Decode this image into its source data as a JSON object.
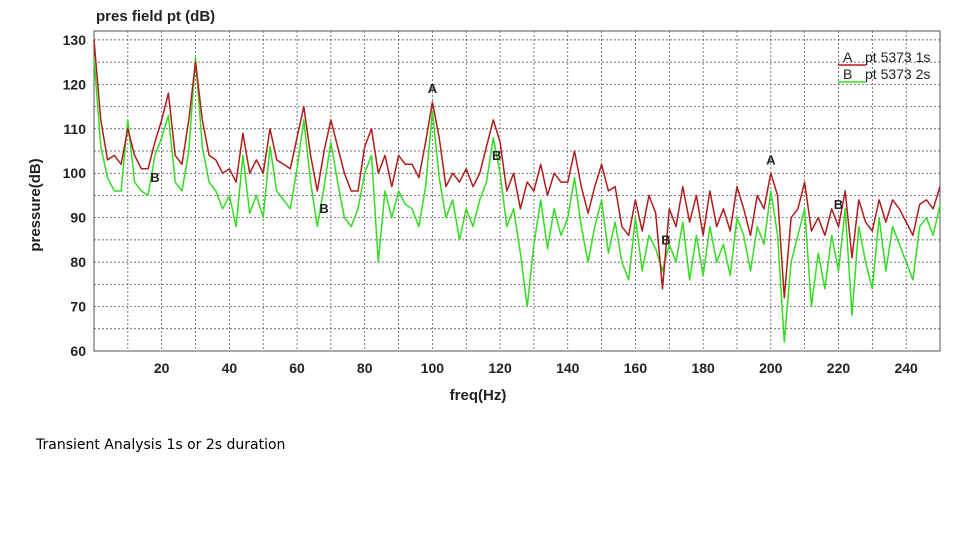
{
  "caption": "Transient Analysis 1s or 2s duration",
  "chart_data": {
    "type": "line",
    "title": "pres field pt (dB)",
    "xlabel": "freq(Hz)",
    "ylabel": "pressure(dB)",
    "xlim": [
      0,
      250
    ],
    "ylim": [
      60,
      132
    ],
    "x_ticks": [
      20,
      40,
      60,
      80,
      100,
      120,
      140,
      160,
      180,
      200,
      220,
      240
    ],
    "y_ticks": [
      60,
      70,
      80,
      90,
      100,
      110,
      120,
      130
    ],
    "grid": true,
    "legend_position": "top-right",
    "colors": {
      "A": "#b01c1c",
      "B": "#33dd22"
    },
    "series": [
      {
        "key": "A",
        "name": "pt 5373 1s",
        "points": [
          [
            0,
            130
          ],
          [
            2,
            112
          ],
          [
            4,
            103
          ],
          [
            6,
            104
          ],
          [
            8,
            102
          ],
          [
            10,
            110
          ],
          [
            12,
            104
          ],
          [
            14,
            101
          ],
          [
            16,
            101
          ],
          [
            18,
            107
          ],
          [
            20,
            112
          ],
          [
            22,
            118
          ],
          [
            24,
            104
          ],
          [
            26,
            102
          ],
          [
            28,
            112
          ],
          [
            30,
            125
          ],
          [
            32,
            112
          ],
          [
            34,
            104
          ],
          [
            36,
            103
          ],
          [
            38,
            100
          ],
          [
            40,
            101
          ],
          [
            42,
            98
          ],
          [
            44,
            109
          ],
          [
            46,
            100
          ],
          [
            48,
            103
          ],
          [
            50,
            100
          ],
          [
            52,
            110
          ],
          [
            54,
            103
          ],
          [
            56,
            102
          ],
          [
            58,
            101
          ],
          [
            60,
            108
          ],
          [
            62,
            115
          ],
          [
            64,
            104
          ],
          [
            66,
            96
          ],
          [
            68,
            105
          ],
          [
            70,
            112
          ],
          [
            72,
            106
          ],
          [
            74,
            100
          ],
          [
            76,
            96
          ],
          [
            78,
            96
          ],
          [
            80,
            106
          ],
          [
            82,
            110
          ],
          [
            84,
            100
          ],
          [
            86,
            104
          ],
          [
            88,
            97
          ],
          [
            90,
            104
          ],
          [
            92,
            102
          ],
          [
            94,
            102
          ],
          [
            96,
            99
          ],
          [
            98,
            107
          ],
          [
            100,
            116
          ],
          [
            102,
            108
          ],
          [
            104,
            97
          ],
          [
            106,
            100
          ],
          [
            108,
            98
          ],
          [
            110,
            101
          ],
          [
            112,
            97
          ],
          [
            114,
            100
          ],
          [
            116,
            106
          ],
          [
            118,
            112
          ],
          [
            120,
            107
          ],
          [
            122,
            96
          ],
          [
            124,
            100
          ],
          [
            126,
            92
          ],
          [
            128,
            98
          ],
          [
            130,
            96
          ],
          [
            132,
            102
          ],
          [
            134,
            95
          ],
          [
            136,
            100
          ],
          [
            138,
            98
          ],
          [
            140,
            98
          ],
          [
            142,
            105
          ],
          [
            144,
            97
          ],
          [
            146,
            91
          ],
          [
            148,
            97
          ],
          [
            150,
            102
          ],
          [
            152,
            96
          ],
          [
            154,
            97
          ],
          [
            156,
            88
          ],
          [
            158,
            86
          ],
          [
            160,
            94
          ],
          [
            162,
            87
          ],
          [
            164,
            95
          ],
          [
            166,
            91
          ],
          [
            168,
            74
          ],
          [
            170,
            92
          ],
          [
            172,
            88
          ],
          [
            174,
            97
          ],
          [
            176,
            89
          ],
          [
            178,
            95
          ],
          [
            180,
            86
          ],
          [
            182,
            96
          ],
          [
            184,
            88
          ],
          [
            186,
            92
          ],
          [
            188,
            87
          ],
          [
            190,
            97
          ],
          [
            192,
            92
          ],
          [
            194,
            86
          ],
          [
            196,
            95
          ],
          [
            198,
            92
          ],
          [
            200,
            100
          ],
          [
            202,
            95
          ],
          [
            204,
            72
          ],
          [
            206,
            90
          ],
          [
            208,
            92
          ],
          [
            210,
            98
          ],
          [
            212,
            87
          ],
          [
            214,
            90
          ],
          [
            216,
            86
          ],
          [
            218,
            92
          ],
          [
            220,
            88
          ],
          [
            222,
            96
          ],
          [
            224,
            81
          ],
          [
            226,
            94
          ],
          [
            228,
            89
          ],
          [
            230,
            87
          ],
          [
            232,
            94
          ],
          [
            234,
            89
          ],
          [
            236,
            94
          ],
          [
            238,
            92
          ],
          [
            240,
            89
          ],
          [
            242,
            86
          ],
          [
            244,
            93
          ],
          [
            246,
            94
          ],
          [
            248,
            92
          ],
          [
            250,
            97
          ]
        ]
      },
      {
        "key": "B",
        "name": "pt 5373 2s",
        "points": [
          [
            0,
            126
          ],
          [
            2,
            106
          ],
          [
            4,
            99
          ],
          [
            6,
            96
          ],
          [
            8,
            96
          ],
          [
            10,
            112
          ],
          [
            12,
            98
          ],
          [
            14,
            96
          ],
          [
            16,
            95
          ],
          [
            18,
            104
          ],
          [
            20,
            108
          ],
          [
            22,
            113
          ],
          [
            24,
            98
          ],
          [
            26,
            96
          ],
          [
            28,
            105
          ],
          [
            30,
            126
          ],
          [
            32,
            106
          ],
          [
            34,
            98
          ],
          [
            36,
            96
          ],
          [
            38,
            92
          ],
          [
            40,
            95
          ],
          [
            42,
            88
          ],
          [
            44,
            104
          ],
          [
            46,
            91
          ],
          [
            48,
            95
          ],
          [
            50,
            90
          ],
          [
            52,
            106
          ],
          [
            54,
            96
          ],
          [
            56,
            94
          ],
          [
            58,
            92
          ],
          [
            60,
            101
          ],
          [
            62,
            112
          ],
          [
            64,
            98
          ],
          [
            66,
            88
          ],
          [
            68,
            97
          ],
          [
            70,
            107
          ],
          [
            72,
            98
          ],
          [
            74,
            90
          ],
          [
            76,
            88
          ],
          [
            78,
            92
          ],
          [
            80,
            100
          ],
          [
            82,
            104
          ],
          [
            84,
            80
          ],
          [
            86,
            96
          ],
          [
            88,
            90
          ],
          [
            90,
            96
          ],
          [
            92,
            93
          ],
          [
            94,
            92
          ],
          [
            96,
            88
          ],
          [
            98,
            97
          ],
          [
            100,
            114
          ],
          [
            102,
            99
          ],
          [
            104,
            90
          ],
          [
            106,
            94
          ],
          [
            108,
            85
          ],
          [
            110,
            92
          ],
          [
            112,
            88
          ],
          [
            114,
            94
          ],
          [
            116,
            98
          ],
          [
            118,
            108
          ],
          [
            120,
            100
          ],
          [
            122,
            88
          ],
          [
            124,
            92
          ],
          [
            126,
            82
          ],
          [
            128,
            70
          ],
          [
            130,
            84
          ],
          [
            132,
            94
          ],
          [
            134,
            83
          ],
          [
            136,
            92
          ],
          [
            138,
            86
          ],
          [
            140,
            90
          ],
          [
            142,
            99
          ],
          [
            144,
            88
          ],
          [
            146,
            80
          ],
          [
            148,
            88
          ],
          [
            150,
            94
          ],
          [
            152,
            82
          ],
          [
            154,
            89
          ],
          [
            156,
            80
          ],
          [
            158,
            76
          ],
          [
            160,
            90
          ],
          [
            162,
            78
          ],
          [
            164,
            86
          ],
          [
            166,
            83
          ],
          [
            168,
            78
          ],
          [
            170,
            84
          ],
          [
            172,
            80
          ],
          [
            174,
            89
          ],
          [
            176,
            76
          ],
          [
            178,
            86
          ],
          [
            180,
            77
          ],
          [
            182,
            88
          ],
          [
            184,
            80
          ],
          [
            186,
            84
          ],
          [
            188,
            77
          ],
          [
            190,
            90
          ],
          [
            192,
            86
          ],
          [
            194,
            78
          ],
          [
            196,
            88
          ],
          [
            198,
            84
          ],
          [
            200,
            96
          ],
          [
            202,
            86
          ],
          [
            204,
            62
          ],
          [
            206,
            80
          ],
          [
            208,
            86
          ],
          [
            210,
            92
          ],
          [
            212,
            70
          ],
          [
            214,
            82
          ],
          [
            216,
            74
          ],
          [
            218,
            86
          ],
          [
            220,
            78
          ],
          [
            222,
            92
          ],
          [
            224,
            68
          ],
          [
            226,
            88
          ],
          [
            228,
            80
          ],
          [
            230,
            74
          ],
          [
            232,
            90
          ],
          [
            234,
            78
          ],
          [
            236,
            88
          ],
          [
            238,
            84
          ],
          [
            240,
            80
          ],
          [
            242,
            76
          ],
          [
            244,
            88
          ],
          [
            246,
            90
          ],
          [
            248,
            86
          ],
          [
            250,
            93
          ]
        ]
      }
    ],
    "annotations": [
      {
        "text": "A",
        "x": 100,
        "y": 118
      },
      {
        "text": "B",
        "x": 18,
        "y": 98
      },
      {
        "text": "B",
        "x": 68,
        "y": 91
      },
      {
        "text": "B",
        "x": 119,
        "y": 103
      },
      {
        "text": "A",
        "x": 200,
        "y": 102
      },
      {
        "text": "B",
        "x": 169,
        "y": 84
      },
      {
        "text": "B",
        "x": 220,
        "y": 92
      }
    ]
  }
}
